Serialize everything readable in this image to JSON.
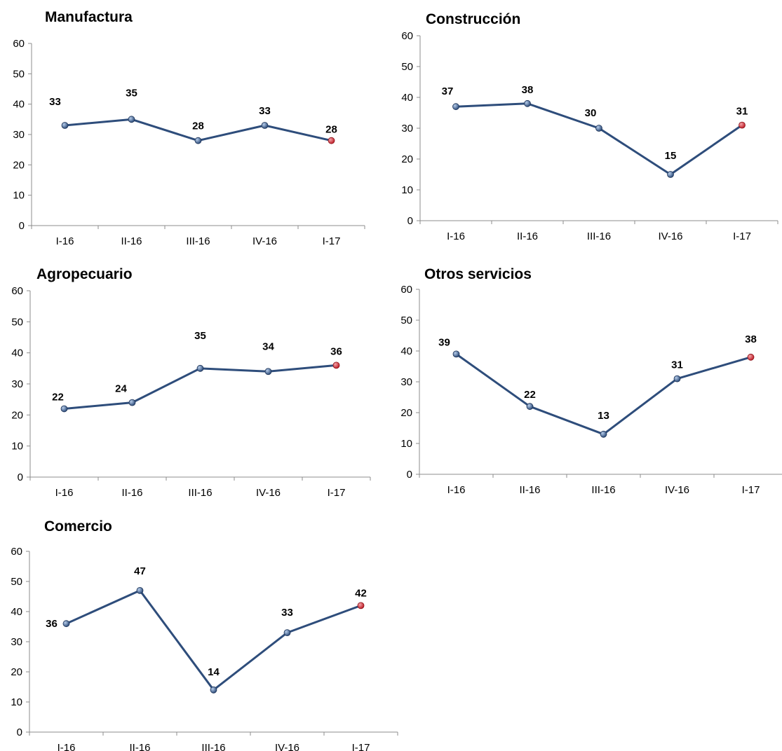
{
  "chart_data": [
    {
      "type": "line",
      "title": "Manufactura",
      "categories": [
        "I-16",
        "II-16",
        "III-16",
        "IV-16",
        "I-17"
      ],
      "values": [
        33,
        35,
        28,
        33,
        28
      ],
      "ylim": [
        0,
        60
      ],
      "yticks": [
        0,
        10,
        20,
        30,
        40,
        50,
        60
      ],
      "grid": false,
      "line_color": "#2e4d7b",
      "last_point_color": "#c0202a"
    },
    {
      "type": "line",
      "title": "Construcción",
      "categories": [
        "I-16",
        "II-16",
        "III-16",
        "IV-16",
        "I-17"
      ],
      "values": [
        37,
        38,
        30,
        15,
        31
      ],
      "ylim": [
        0,
        60
      ],
      "yticks": [
        0,
        10,
        20,
        30,
        40,
        50,
        60
      ],
      "grid": false,
      "line_color": "#2e4d7b",
      "last_point_color": "#c0202a"
    },
    {
      "type": "line",
      "title": "Agropecuario",
      "categories": [
        "I-16",
        "II-16",
        "III-16",
        "IV-16",
        "I-17"
      ],
      "values": [
        22,
        24,
        35,
        34,
        36
      ],
      "ylim": [
        0,
        60
      ],
      "yticks": [
        0,
        10,
        20,
        30,
        40,
        50,
        60
      ],
      "grid": false,
      "line_color": "#2e4d7b",
      "last_point_color": "#c0202a"
    },
    {
      "type": "line",
      "title": "Otros servicios",
      "categories": [
        "I-16",
        "II-16",
        "III-16",
        "IV-16",
        "I-17"
      ],
      "values": [
        39,
        22,
        13,
        31,
        38
      ],
      "ylim": [
        0,
        60
      ],
      "yticks": [
        0,
        10,
        20,
        30,
        40,
        50,
        60
      ],
      "grid": false,
      "line_color": "#2e4d7b",
      "last_point_color": "#c0202a"
    },
    {
      "type": "line",
      "title": "Comercio",
      "categories": [
        "I-16",
        "II-16",
        "III-16",
        "IV-16",
        "I-17"
      ],
      "values": [
        36,
        47,
        14,
        33,
        42
      ],
      "ylim": [
        0,
        60
      ],
      "yticks": [
        0,
        10,
        20,
        30,
        40,
        50,
        60
      ],
      "grid": false,
      "line_color": "#2e4d7b",
      "last_point_color": "#c0202a"
    }
  ]
}
